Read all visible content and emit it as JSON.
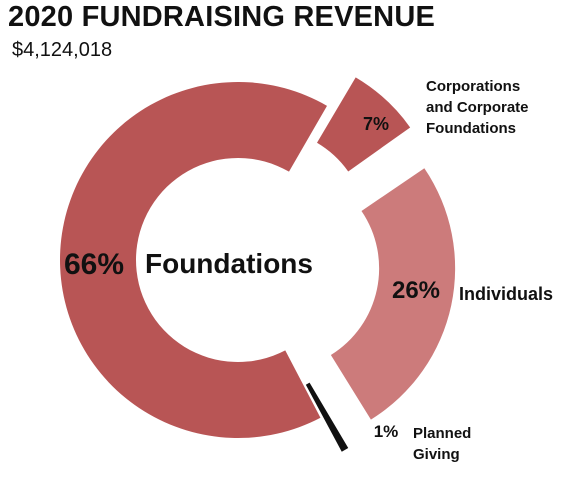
{
  "header": {
    "title": "2020 FUNDRAISING REVENUE",
    "total": "$4,124,018"
  },
  "chart_data": {
    "type": "pie",
    "title": "2020 FUNDRAISING REVENUE",
    "subtitle": "$4,124,018",
    "donut": true,
    "exploded": true,
    "slices": [
      {
        "name": "Foundations",
        "label_lines": [
          "Foundations"
        ],
        "percent": 66,
        "percent_label": "66%",
        "color": "#b85555"
      },
      {
        "name": "Corporations and Corporate Foundations",
        "label_lines": [
          "Corporations",
          "and Corporate",
          "Foundations"
        ],
        "percent": 7,
        "percent_label": "7%",
        "color": "#b85555"
      },
      {
        "name": "Individuals",
        "label_lines": [
          "Individuals"
        ],
        "percent": 26,
        "percent_label": "26%",
        "color": "#cc7b7b"
      },
      {
        "name": "Planned Giving",
        "label_lines": [
          "Planned",
          "Giving"
        ],
        "percent": 1,
        "percent_label": "1%",
        "color": "#111111"
      }
    ]
  }
}
